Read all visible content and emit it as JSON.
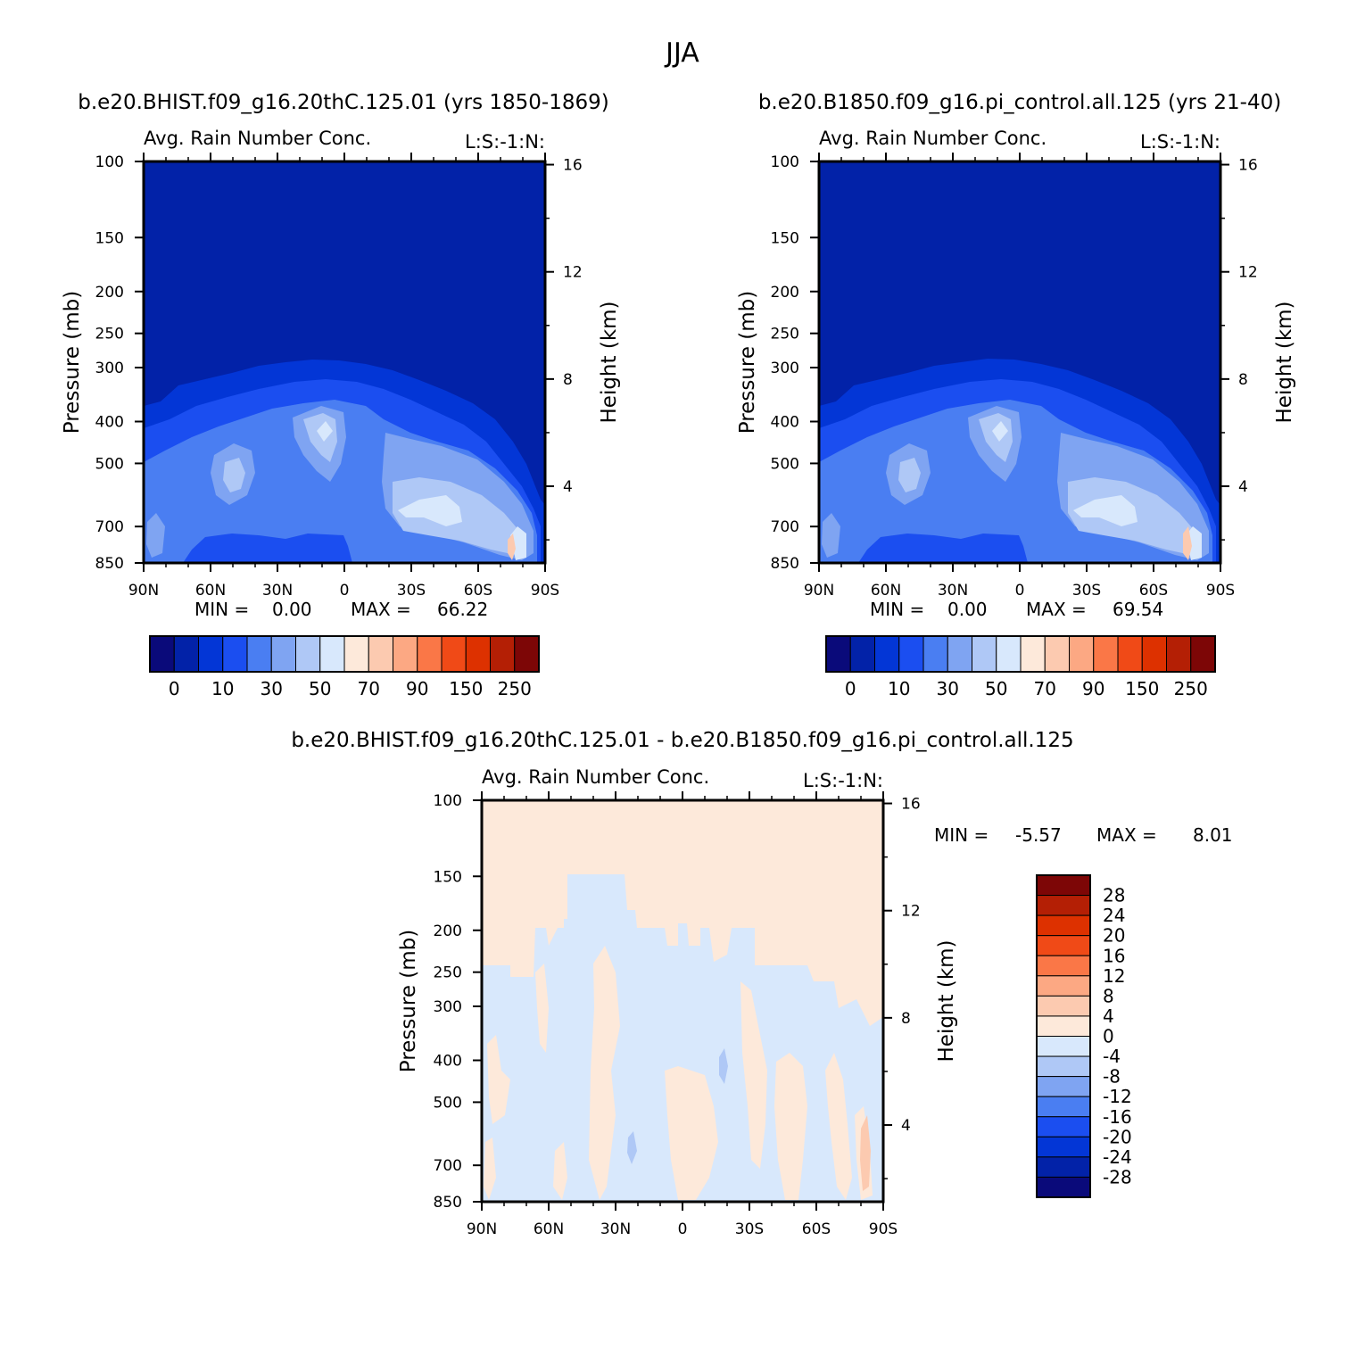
{
  "page_title": "JJA",
  "colors": {
    "palette": [
      "#0a0a7a",
      "#0222a8",
      "#0336d6",
      "#1b4ef0",
      "#4a7ef2",
      "#7fa4f2",
      "#afc8f6",
      "#d8e8fc",
      "#fde9da",
      "#fccab0",
      "#fca883",
      "#fa7747",
      "#f04a17",
      "#dd3100",
      "#b41f05",
      "#7d0606"
    ],
    "frame": "#000000"
  },
  "chart_data": [
    {
      "type": "heatmap",
      "panel": "case1",
      "case_label": "b.e20.BHIST.f09_g16.20thC.125.01 (yrs 1850-1869)",
      "title": "Avg. Rain Number Conc.",
      "title_right": "L:S:-1:N:",
      "xlabel": "",
      "ylabel": "Pressure (mb)",
      "ylabel_right": "Height (km)",
      "x_ticks": [
        "90N",
        "60N",
        "30N",
        "0",
        "30S",
        "60S",
        "90S"
      ],
      "y_ticks": [
        "100",
        "150",
        "200",
        "250",
        "300",
        "400",
        "500",
        "700",
        "850"
      ],
      "height_ticks": [
        "16",
        "12",
        "8",
        "4"
      ],
      "xlim": [
        90,
        -90
      ],
      "ylim": [
        100,
        850
      ],
      "stats": {
        "min_label": "MIN =",
        "min": "0.00",
        "max_label": "MAX =",
        "max": "66.22"
      },
      "colorbar_labels": [
        "0",
        "10",
        "30",
        "50",
        "70",
        "90",
        "150",
        "250"
      ]
    },
    {
      "type": "heatmap",
      "panel": "case2",
      "case_label": "b.e20.B1850.f09_g16.pi_control.all.125 (yrs 21-40)",
      "title": "Avg. Rain Number Conc.",
      "title_right": "L:S:-1:N:",
      "xlabel": "",
      "ylabel": "Pressure (mb)",
      "ylabel_right": "Height (km)",
      "x_ticks": [
        "90N",
        "60N",
        "30N",
        "0",
        "30S",
        "60S",
        "90S"
      ],
      "y_ticks": [
        "100",
        "150",
        "200",
        "250",
        "300",
        "400",
        "500",
        "700",
        "850"
      ],
      "height_ticks": [
        "16",
        "12",
        "8",
        "4"
      ],
      "xlim": [
        90,
        -90
      ],
      "ylim": [
        100,
        850
      ],
      "stats": {
        "min_label": "MIN =",
        "min": "0.00",
        "max_label": "MAX =",
        "max": "69.54"
      },
      "colorbar_labels": [
        "0",
        "10",
        "30",
        "50",
        "70",
        "90",
        "150",
        "250"
      ]
    },
    {
      "type": "heatmap",
      "panel": "difference",
      "case_label": "b.e20.BHIST.f09_g16.20thC.125.01 - b.e20.B1850.f09_g16.pi_control.all.125",
      "title": "Avg. Rain Number Conc.",
      "title_right": "L:S:-1:N:",
      "xlabel": "",
      "ylabel": "Pressure (mb)",
      "ylabel_right": "Height (km)",
      "x_ticks": [
        "90N",
        "60N",
        "30N",
        "0",
        "30S",
        "60S",
        "90S"
      ],
      "y_ticks": [
        "100",
        "150",
        "200",
        "250",
        "300",
        "400",
        "500",
        "700",
        "850"
      ],
      "height_ticks": [
        "16",
        "12",
        "8",
        "4"
      ],
      "xlim": [
        90,
        -90
      ],
      "ylim": [
        100,
        850
      ],
      "stats": {
        "min_label": "MIN =",
        "min": "-5.57",
        "max_label": "MAX =",
        "max": "8.01"
      },
      "colorbar_labels": [
        "28",
        "24",
        "20",
        "16",
        "12",
        "8",
        "4",
        "0",
        "-4",
        "-8",
        "-12",
        "-16",
        "-20",
        "-24",
        "-28"
      ]
    }
  ]
}
